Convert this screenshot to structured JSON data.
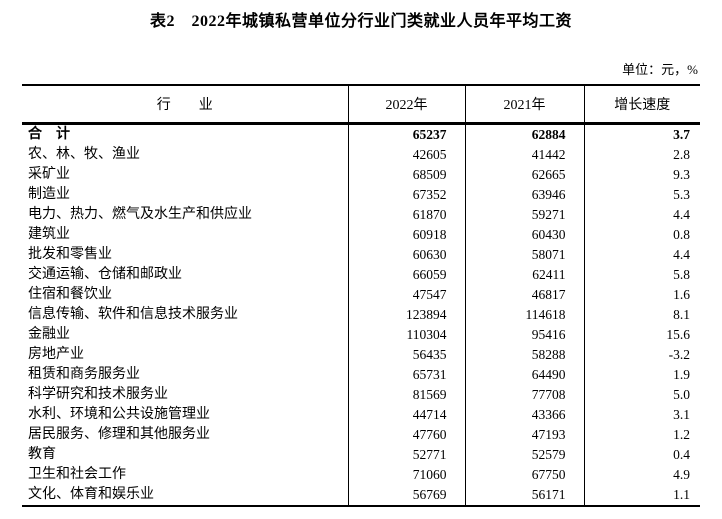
{
  "title": "表2　2022年城镇私营单位分行业门类就业人员年平均工资",
  "unit_note": "单位：元，%",
  "table": {
    "columns": [
      "行　　业",
      "2022年",
      "2021年",
      "增长速度"
    ],
    "rows": [
      {
        "industry": "合　计",
        "y2022": "65237",
        "y2021": "62884",
        "growth": "3.7",
        "bold": true
      },
      {
        "industry": "农、林、牧、渔业",
        "y2022": "42605",
        "y2021": "41442",
        "growth": "2.8",
        "bold": false
      },
      {
        "industry": "采矿业",
        "y2022": "68509",
        "y2021": "62665",
        "growth": "9.3",
        "bold": false
      },
      {
        "industry": "制造业",
        "y2022": "67352",
        "y2021": "63946",
        "growth": "5.3",
        "bold": false
      },
      {
        "industry": "电力、热力、燃气及水生产和供应业",
        "y2022": "61870",
        "y2021": "59271",
        "growth": "4.4",
        "bold": false
      },
      {
        "industry": "建筑业",
        "y2022": "60918",
        "y2021": "60430",
        "growth": "0.8",
        "bold": false
      },
      {
        "industry": "批发和零售业",
        "y2022": "60630",
        "y2021": "58071",
        "growth": "4.4",
        "bold": false
      },
      {
        "industry": "交通运输、仓储和邮政业",
        "y2022": "66059",
        "y2021": "62411",
        "growth": "5.8",
        "bold": false
      },
      {
        "industry": "住宿和餐饮业",
        "y2022": "47547",
        "y2021": "46817",
        "growth": "1.6",
        "bold": false
      },
      {
        "industry": "信息传输、软件和信息技术服务业",
        "y2022": "123894",
        "y2021": "114618",
        "growth": "8.1",
        "bold": false
      },
      {
        "industry": "金融业",
        "y2022": "110304",
        "y2021": "95416",
        "growth": "15.6",
        "bold": false
      },
      {
        "industry": "房地产业",
        "y2022": "56435",
        "y2021": "58288",
        "growth": "-3.2",
        "bold": false
      },
      {
        "industry": "租赁和商务服务业",
        "y2022": "65731",
        "y2021": "64490",
        "growth": "1.9",
        "bold": false
      },
      {
        "industry": "科学研究和技术服务业",
        "y2022": "81569",
        "y2021": "77708",
        "growth": "5.0",
        "bold": false
      },
      {
        "industry": "水利、环境和公共设施管理业",
        "y2022": "44714",
        "y2021": "43366",
        "growth": "3.1",
        "bold": false
      },
      {
        "industry": "居民服务、修理和其他服务业",
        "y2022": "47760",
        "y2021": "47193",
        "growth": "1.2",
        "bold": false
      },
      {
        "industry": "教育",
        "y2022": "52771",
        "y2021": "52579",
        "growth": "0.4",
        "bold": false
      },
      {
        "industry": "卫生和社会工作",
        "y2022": "71060",
        "y2021": "67750",
        "growth": "4.9",
        "bold": false
      },
      {
        "industry": "文化、体育和娱乐业",
        "y2022": "56769",
        "y2021": "56171",
        "growth": "1.1",
        "bold": false
      }
    ]
  }
}
